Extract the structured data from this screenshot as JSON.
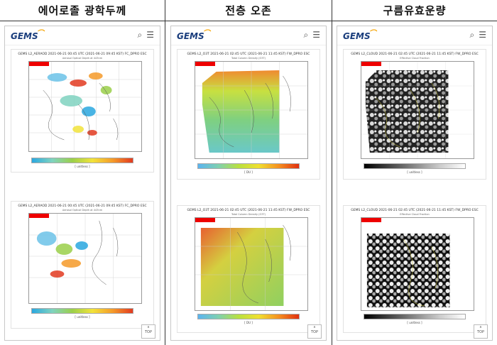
{
  "headers": {
    "aerosol": "에어로졸 광학두께",
    "ozone": "전층 오존",
    "cloud": "구름유효운량"
  },
  "app": {
    "logo": "GEMS",
    "top_label": "TOP"
  },
  "panels": {
    "aerosol": {
      "plot1": {
        "title": "GEMS L2_AERAOD 2021-06-21 00:45 UTC (2021-06-21 09:45 KST)  FC_DPRO ESC",
        "subtitle": "Aerosol Optical Depth at 443nm",
        "unit": "[ unitless ]"
      },
      "plot2": {
        "title": "GEMS L2_AERAOD 2021-06-21 00:45 UTC (2021-06-21 09:45 KST)  FC_DPRO ESC",
        "subtitle": "Aerosol Optical Depth at 443nm",
        "unit": "[ unitless ]"
      }
    },
    "ozone": {
      "plot1": {
        "title": "GEMS L2_O3T 2021-06-21 02:45 UTC (2021-06-21 11:45 KST)  FW_DPRO ESC",
        "subtitle": "Total Column Density (O3T)",
        "unit": "[ DU ]"
      },
      "plot2": {
        "title": "GEMS L2_O3T 2021-06-21 02:45 UTC (2021-06-21 11:45 KST)  FW_DPRO ESC",
        "subtitle": "Total Column Density (O3T)",
        "unit": "[ DU ]"
      }
    },
    "cloud": {
      "plot1": {
        "title": "GEMS L2_CLOUD 2021-06-21 02:45 UTC (2021-06-21 11:45 KST)  FW_DPRO ESC",
        "subtitle": "Effective Cloud Fraction",
        "unit": "[ unitless ]"
      },
      "plot2": {
        "title": "GEMS L2_CLOUD 2021-06-21 02:45 UTC (2021-06-21 11:45 KST)  FW_DPRO ESC",
        "subtitle": "Effective Cloud Fraction",
        "unit": "[ unitless ]"
      }
    }
  },
  "colors": {
    "aerosol_scale": "#e23a20",
    "ozone_scale": "#e03010",
    "cloud_scale": "#000000",
    "tag": "#ee0000"
  },
  "icons": [
    "search-icon",
    "menu-icon",
    "chevron-up-icon"
  ]
}
